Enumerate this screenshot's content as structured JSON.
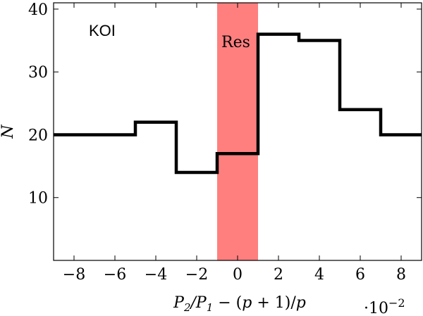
{
  "chart_data": {
    "type": "bar",
    "subtype": "step-histogram",
    "bin_edges": [
      -9,
      -5,
      -3,
      -1,
      1,
      3,
      5,
      7,
      9
    ],
    "values": [
      20,
      22,
      14,
      17,
      36,
      35,
      24,
      20
    ],
    "xlim": [
      -9,
      9
    ],
    "ylim": [
      0,
      41
    ],
    "x_ticks": [
      -8,
      -6,
      -4,
      -2,
      0,
      2,
      4,
      6,
      8
    ],
    "x_tick_labels": [
      "−8",
      "−6",
      "−4",
      "−2",
      "0",
      "2",
      "4",
      "6",
      "8"
    ],
    "y_ticks": [
      10,
      20,
      30,
      40
    ],
    "y_tick_labels": [
      "10",
      "20",
      "30",
      "40"
    ],
    "x_scale_note": "·10−2",
    "xlabel": "P2/P1 − (p + 1)/p",
    "ylabel": "N",
    "annotations": {
      "dataset_label": "KOI",
      "band_label": "Res"
    },
    "resonance_band": [
      -1,
      1
    ],
    "colors": {
      "line": "#000000",
      "band": "#ff7f7f"
    },
    "grid": false
  }
}
